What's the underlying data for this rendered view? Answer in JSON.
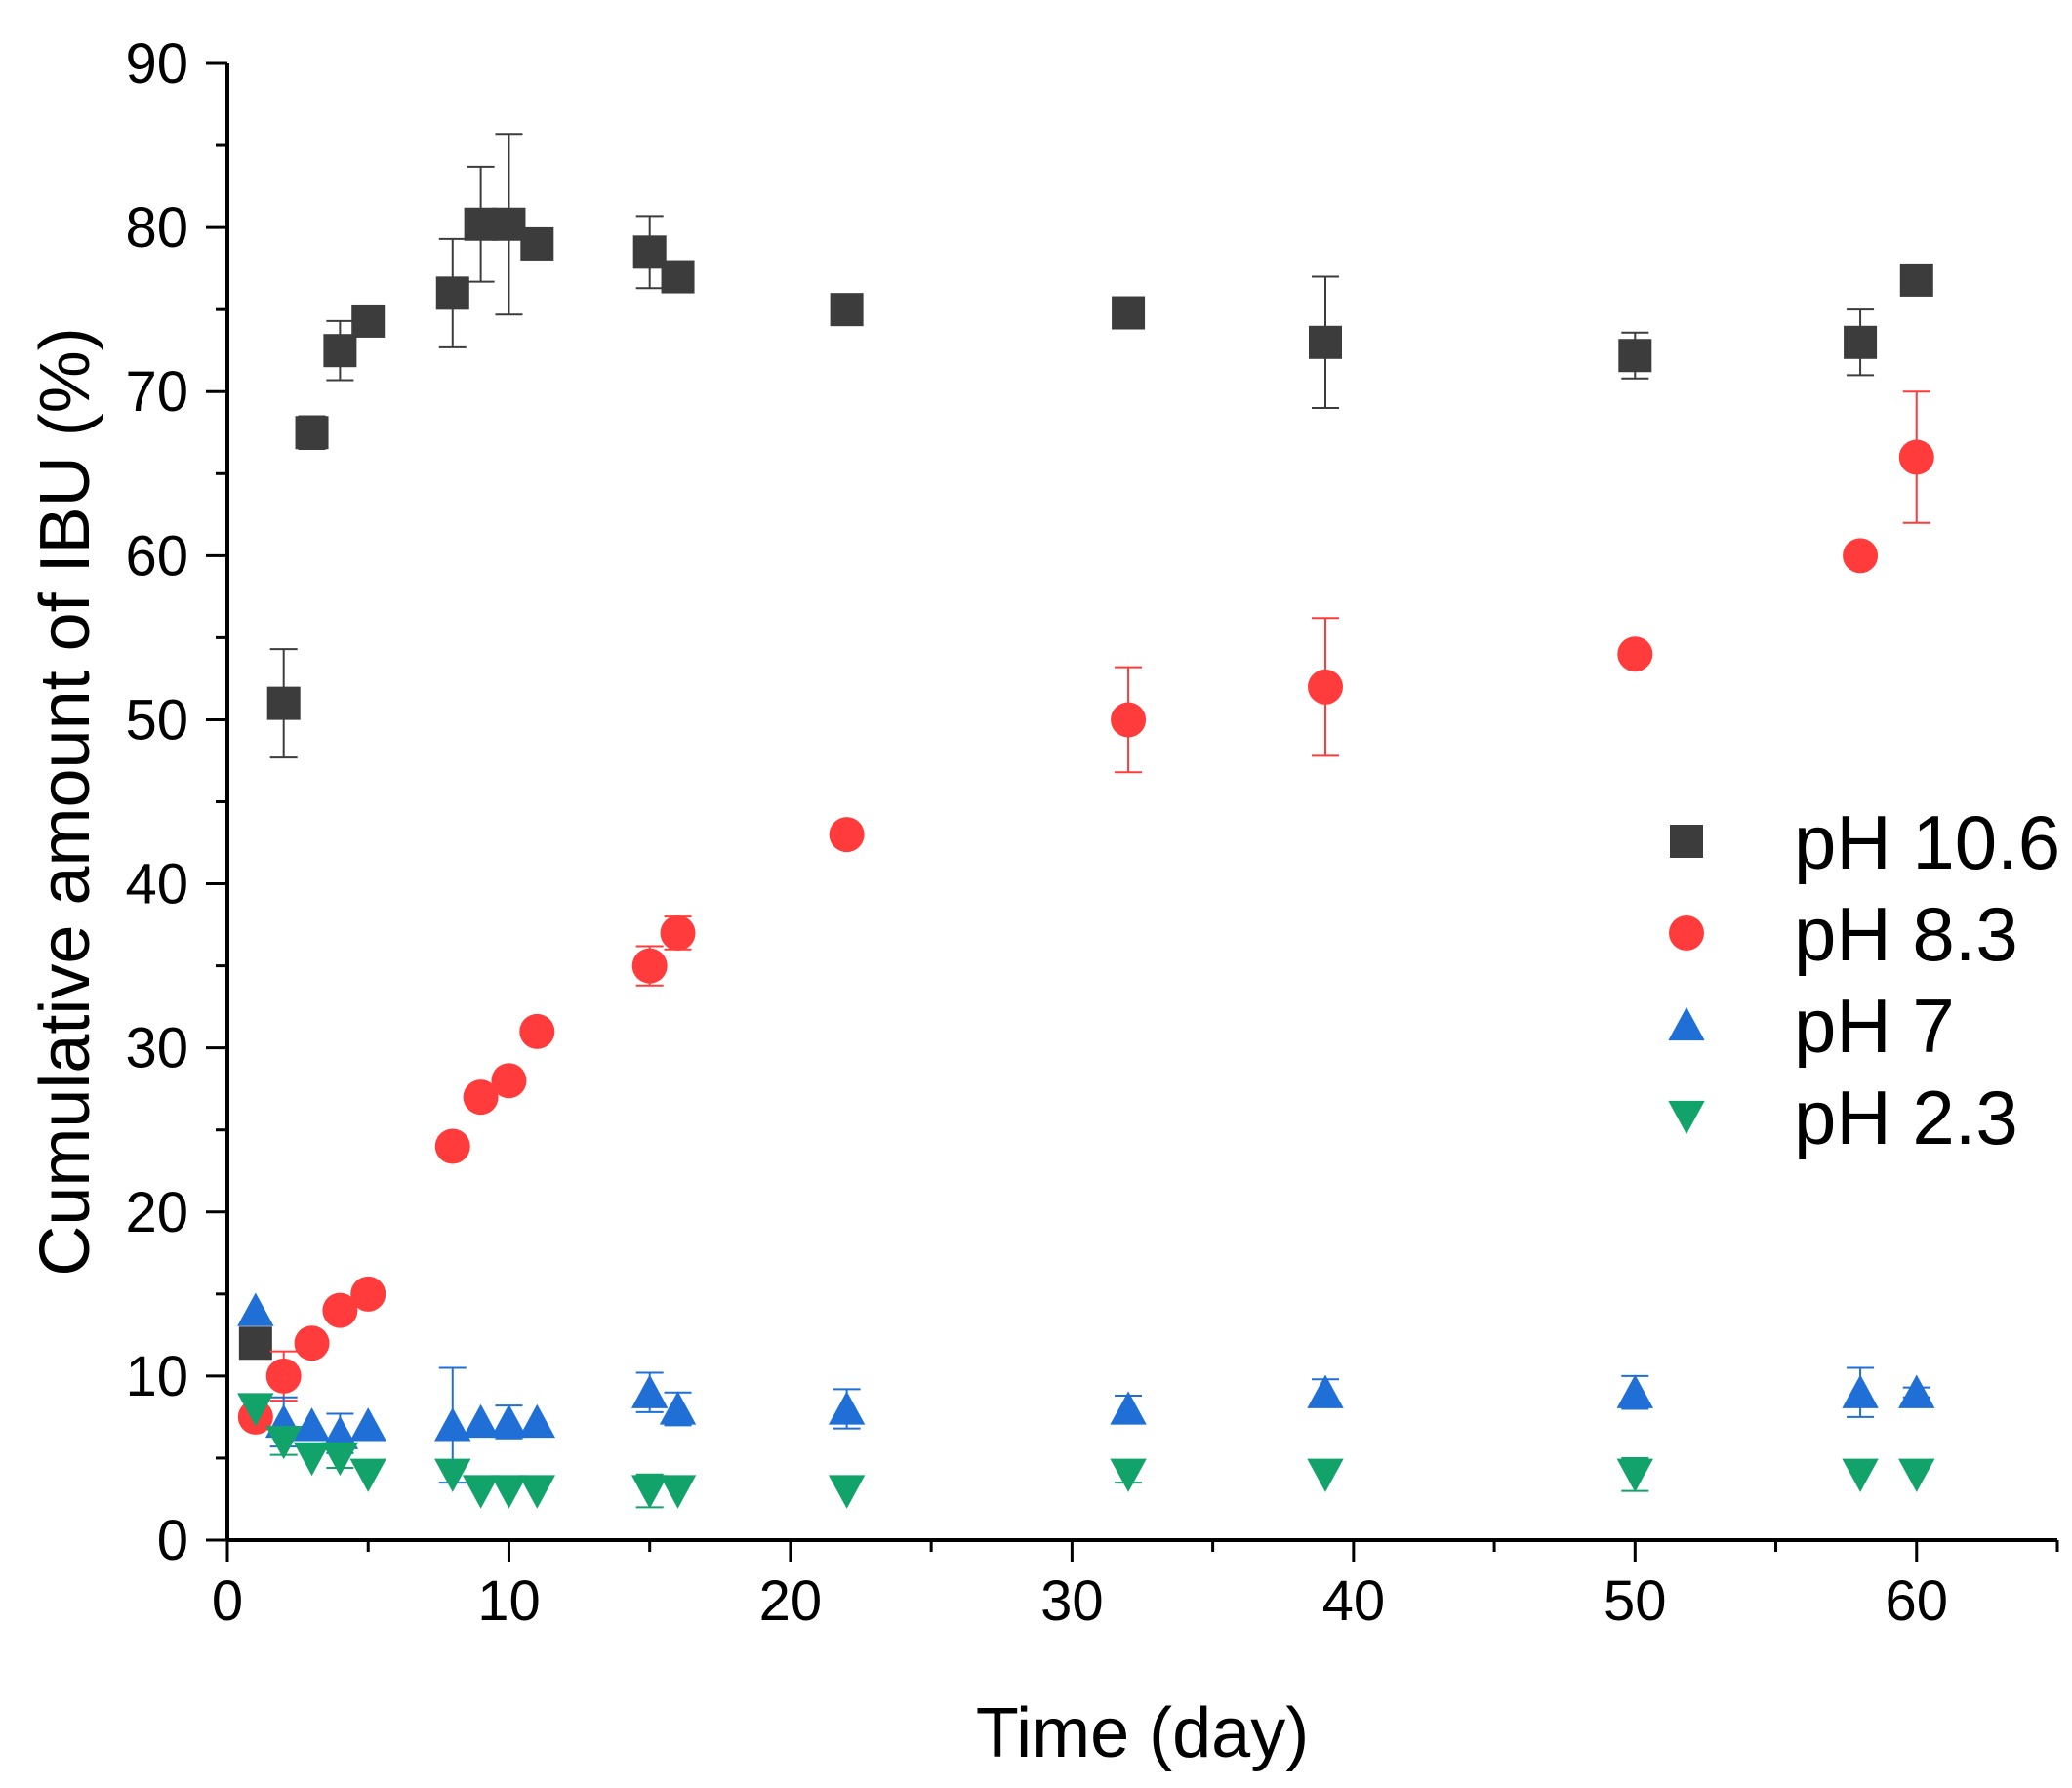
{
  "chart_data": {
    "type": "scatter",
    "title": "",
    "xlabel": "Time (day)",
    "ylabel": "Cumulative amount of IBU (%)",
    "xlim": [
      0,
      65
    ],
    "ylim": [
      0,
      90
    ],
    "x_ticks": [
      0,
      10,
      20,
      30,
      40,
      50,
      60
    ],
    "y_ticks": [
      0,
      10,
      20,
      30,
      40,
      50,
      60,
      70,
      80,
      90
    ],
    "grid": false,
    "legend_position": "right",
    "series": [
      {
        "name": "pH 10.6",
        "marker": "square",
        "color": "#3c3c3c",
        "x": [
          1,
          2,
          3,
          4,
          5,
          8,
          9,
          10,
          11,
          15,
          16,
          22,
          32,
          39,
          50,
          58,
          60
        ],
        "y": [
          12,
          51,
          67.5,
          72.5,
          74.3,
          76,
          80.2,
          80.2,
          79,
          78.5,
          77,
          75,
          74.8,
          73,
          72.2,
          73,
          76.8
        ],
        "err": [
          0,
          3.3,
          1,
          1.8,
          0.3,
          3.3,
          3.5,
          5.5,
          0.5,
          2.2,
          0.5,
          0.3,
          0.3,
          4,
          1.4,
          2,
          0.3
        ]
      },
      {
        "name": "pH 8.3",
        "marker": "circle",
        "color": "#ff3b3b",
        "x": [
          1,
          2,
          3,
          4,
          5,
          8,
          9,
          10,
          11,
          15,
          16,
          22,
          32,
          39,
          50,
          58,
          60
        ],
        "y": [
          7.5,
          10,
          12,
          14,
          15,
          24,
          27,
          28,
          31,
          35,
          37,
          43,
          50,
          52,
          54,
          60,
          66
        ],
        "err": [
          0,
          1.5,
          0,
          0,
          0,
          0,
          0,
          0,
          0,
          1.2,
          1,
          0,
          3.2,
          4.2,
          0.5,
          0,
          4
        ]
      },
      {
        "name": "pH 7",
        "marker": "triangle-up",
        "color": "#1f6fd6",
        "x": [
          1,
          2,
          3,
          4,
          5,
          8,
          9,
          10,
          11,
          15,
          16,
          22,
          32,
          39,
          50,
          58,
          60
        ],
        "y": [
          14,
          7.2,
          7,
          6.5,
          7,
          7,
          7.2,
          7.2,
          7.2,
          9,
          8,
          8,
          8,
          9,
          9,
          9,
          9
        ],
        "err": [
          0,
          1.5,
          0,
          1.2,
          0,
          3.5,
          0,
          1,
          0,
          1.2,
          1,
          1.2,
          0.8,
          0.8,
          1,
          1.5,
          0.3
        ]
      },
      {
        "name": "pH 2.3",
        "marker": "triangle-down",
        "color": "#12a36a",
        "x": [
          1,
          2,
          3,
          4,
          5,
          8,
          9,
          10,
          11,
          15,
          16,
          22,
          32,
          39,
          50,
          58,
          60
        ],
        "y": [
          8,
          6,
          5,
          5,
          4,
          4,
          3,
          3,
          3,
          3,
          3,
          3,
          4,
          4,
          4,
          4,
          4
        ],
        "err": [
          0,
          0.8,
          0,
          0.6,
          0,
          0,
          0,
          0,
          0,
          1,
          0,
          0,
          0.5,
          0,
          1,
          0,
          0
        ]
      }
    ]
  }
}
